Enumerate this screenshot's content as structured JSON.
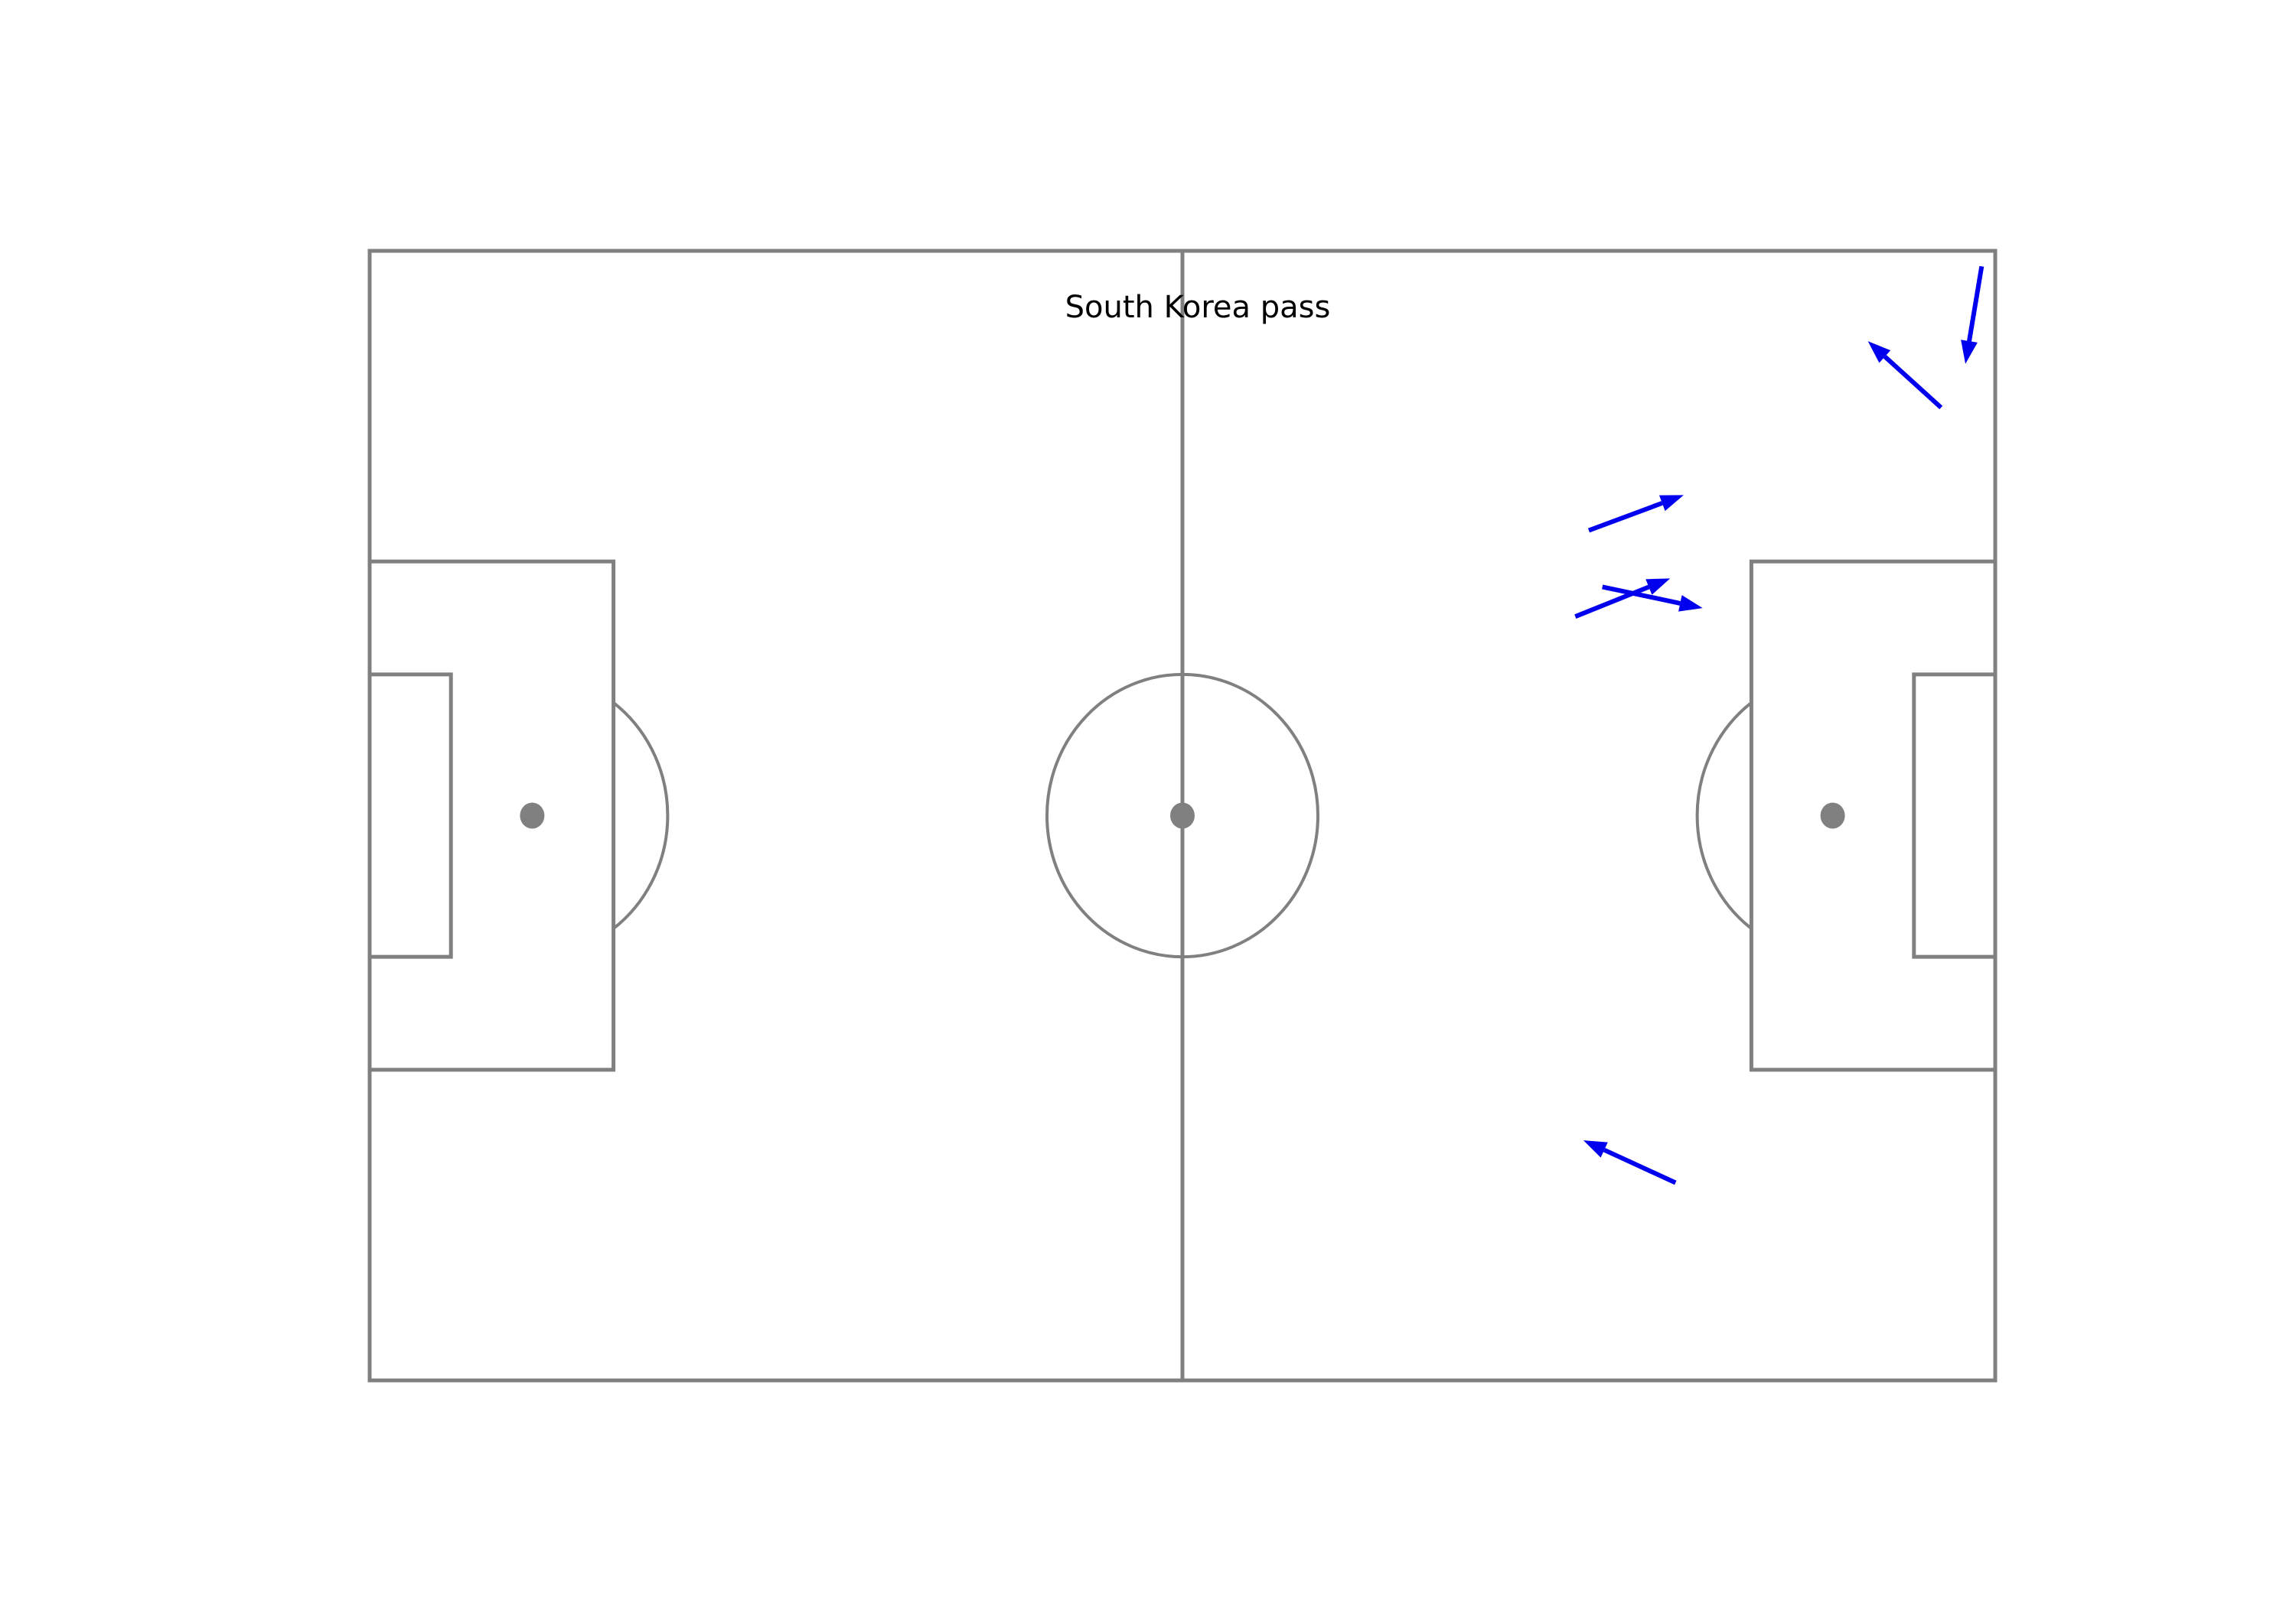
{
  "chart_data": {
    "type": "scatter",
    "title": "South Korea pass",
    "xlabel": "",
    "ylabel": "",
    "xlim": [
      0,
      120
    ],
    "ylim": [
      0,
      80
    ],
    "grid": false,
    "pitch": {
      "length": 120,
      "width": 80,
      "penalty_box": {
        "depth": 18,
        "width": 36
      },
      "six_yard_box": {
        "depth": 6,
        "width": 20
      },
      "penalty_spot": 12,
      "centre_circle_radius": 10,
      "line_color": "#808080"
    },
    "series": [
      {
        "arrow_color": "#0000ee",
        "passes": [
          {
            "x": 119.0,
            "y": 78.9,
            "end_x": 117.8,
            "end_y": 72.0
          },
          {
            "x": 116.0,
            "y": 68.9,
            "end_x": 110.6,
            "end_y": 73.6
          },
          {
            "x": 90.0,
            "y": 60.2,
            "end_x": 97.0,
            "end_y": 62.7
          },
          {
            "x": 89.0,
            "y": 54.1,
            "end_x": 96.0,
            "end_y": 56.8
          },
          {
            "x": 91.0,
            "y": 56.2,
            "end_x": 98.4,
            "end_y": 54.7
          },
          {
            "x": 96.4,
            "y": 14.0,
            "end_x": 89.6,
            "end_y": 17.0
          }
        ]
      }
    ]
  }
}
